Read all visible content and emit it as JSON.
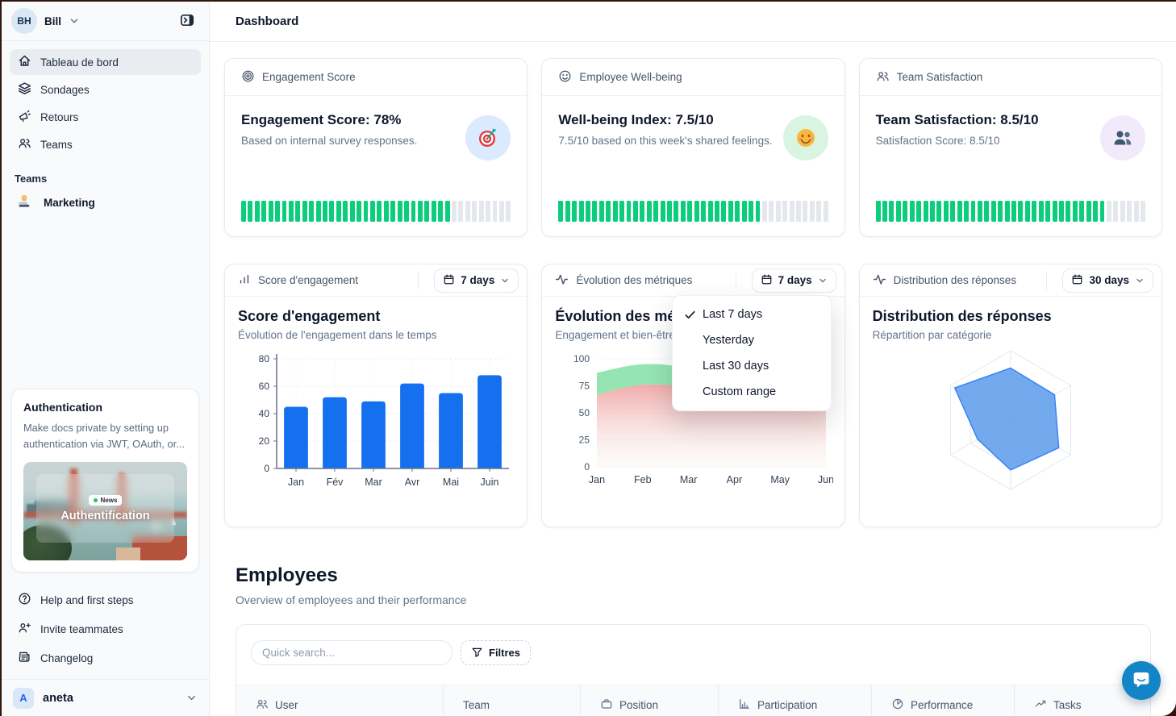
{
  "header": {
    "title": "Dashboard"
  },
  "sidebar": {
    "user": {
      "initials": "BH",
      "name": "Bill"
    },
    "nav": [
      {
        "label": "Tableau de bord",
        "icon": "home",
        "active": true
      },
      {
        "label": "Sondages",
        "icon": "layers",
        "active": false
      },
      {
        "label": "Retours",
        "icon": "megaphone",
        "active": false
      },
      {
        "label": "Teams",
        "icon": "users",
        "active": false
      }
    ],
    "teams_label": "Teams",
    "team_items": [
      {
        "label": "Marketing",
        "icon": "technologist-emoji"
      }
    ],
    "promo": {
      "title": "Authentication",
      "body": "Make docs private by setting up authentication via JWT, OAuth, or...",
      "badge": "News",
      "caption": "Authentification"
    },
    "footer_nav": [
      {
        "label": "Help and first steps",
        "icon": "help-circle"
      },
      {
        "label": "Invite teammates",
        "icon": "user-plus"
      },
      {
        "label": "Changelog",
        "icon": "newspaper"
      }
    ],
    "workspace": {
      "initial": "A",
      "name": "aneta"
    }
  },
  "stat_cards": [
    {
      "header_label": "Engagement Score",
      "header_icon": "target",
      "title": "Engagement Score: 78%",
      "subtitle": "Based on internal survey responses.",
      "emoji": "dart-target",
      "emoji_bg": "#DBEAFE",
      "progress_percent": 78
    },
    {
      "header_label": "Employee Well-being",
      "header_icon": "smile",
      "title": "Well-being Index: 7.5/10",
      "subtitle": "7.5/10 based on this week's shared feelings.",
      "emoji": "smiling-face",
      "emoji_bg": "#D9F5E1",
      "progress_percent": 75
    },
    {
      "header_label": "Team Satisfaction",
      "header_icon": "users",
      "title": "Team Satisfaction: 8.5/10",
      "subtitle": "Satisfaction Score: 8.5/10",
      "emoji": "busts-silhouette",
      "emoji_bg": "#F1EAFB",
      "progress_percent": 85
    }
  ],
  "chart_cards": [
    {
      "header_label": "Score d'engagement",
      "header_icon": "bar-chart",
      "period": "7 days"
    },
    {
      "header_label": "Évolution des métriques",
      "header_icon": "activity",
      "period": "7 days"
    },
    {
      "header_label": "Distribution des réponses",
      "header_icon": "activity",
      "period": "30 days"
    }
  ],
  "dropdown": {
    "items": [
      "Last 7 days",
      "Yesterday",
      "Last 30 days",
      "Custom range"
    ],
    "selected_index": 0
  },
  "employees": {
    "title": "Employees",
    "subtitle": "Overview of employees and their performance",
    "search_placeholder": "Quick search...",
    "filter_label": "Filtres",
    "columns": [
      {
        "label": "User",
        "icon": "users"
      },
      {
        "label": "Team",
        "icon": "none"
      },
      {
        "label": "Position",
        "icon": "briefcase"
      },
      {
        "label": "Participation",
        "icon": "bar-chart"
      },
      {
        "label": "Performance",
        "icon": "pie-chart"
      },
      {
        "label": "Tasks",
        "icon": "trending-up"
      }
    ]
  },
  "colors": {
    "progress_green": "#0BCE7C",
    "progress_track": "#E4E7EC",
    "bar_blue": "#1570EF",
    "area_green": "#8FE3AE",
    "area_red": "#EE9C9C",
    "radar_fill": "#5B9BEA",
    "radar_stroke": "#3B82F6",
    "chat_blue": "#1385C6"
  },
  "chart_data": [
    {
      "type": "bar",
      "title": "Score d'engagement",
      "subtitle": "Évolution de l'engagement dans le temps",
      "categories": [
        "Jan",
        "Fév",
        "Mar",
        "Avr",
        "Mai",
        "Juin"
      ],
      "values": [
        45,
        52,
        49,
        62,
        55,
        68
      ],
      "ylim": [
        0,
        80
      ],
      "yticks": [
        0,
        20,
        40,
        60,
        80
      ],
      "grid": "dotted",
      "bar_color": "#1570EF"
    },
    {
      "type": "area",
      "title": "Évolution des métriques",
      "subtitle": "Engagement et bien-être",
      "x": [
        "Jan",
        "Feb",
        "Mar",
        "Apr",
        "May",
        "Jun"
      ],
      "ylim": [
        0,
        100
      ],
      "yticks": [
        0,
        25,
        50,
        75,
        100
      ],
      "grid": "dotted-horizontal",
      "series": [
        {
          "name": "upper-band-green",
          "color": "#8FE3AE",
          "values": [
            87,
            95,
            90,
            66,
            72,
            78
          ]
        },
        {
          "name": "lower-band-red",
          "color": "#EE9C9C",
          "values": [
            67,
            76,
            73,
            58,
            62,
            65
          ]
        }
      ]
    },
    {
      "type": "radar",
      "title": "Distribution des réponses",
      "subtitle": "Répartition par catégorie",
      "axes_count": 6,
      "max": 100,
      "values": [
        75,
        73,
        80,
        72,
        55,
        93
      ],
      "grid_levels": 3,
      "fill": "#5B9BEA",
      "stroke": "#3B82F6"
    }
  ]
}
